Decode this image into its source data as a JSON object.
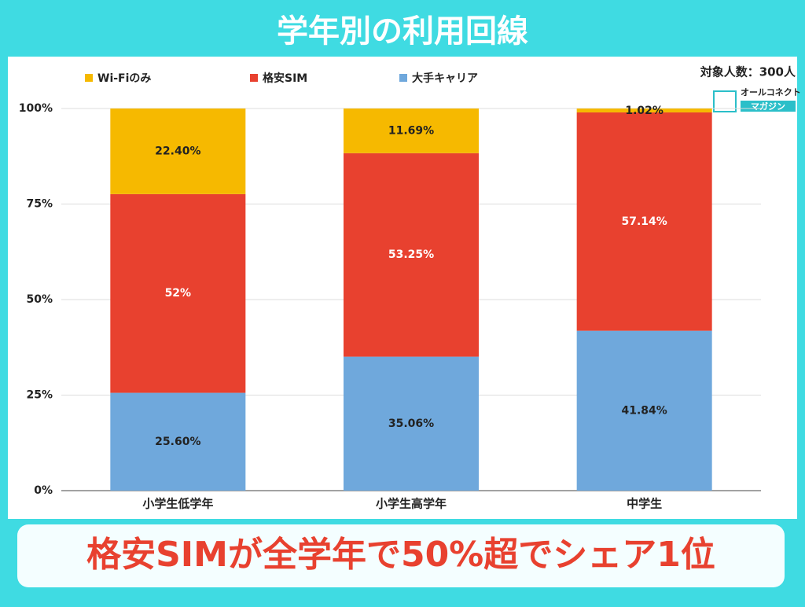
{
  "chart_data": {
    "type": "stacked_bar",
    "title": "学年別の利用回線",
    "annotation": "対象人数：300人",
    "logo": [
      "オールコネクト",
      "マガジン"
    ],
    "headline": "格安SIMが全学年で50%超でシェア1位",
    "categories": [
      "小学生低学年",
      "小学生高学年",
      "中学生"
    ],
    "series": [
      {
        "name": "Wi-Fiのみ",
        "color": "#f6b900",
        "values": [
          22.4,
          11.69,
          1.02
        ],
        "value_labels": [
          "22.40%",
          "11.69%",
          "1.02%"
        ]
      },
      {
        "name": "格安SIM",
        "color": "#e8412f",
        "values": [
          52,
          53.25,
          57.14
        ],
        "value_labels": [
          "52%",
          "53.25%",
          "57.14%"
        ]
      },
      {
        "name": "大手キャリア",
        "color": "#6fa8dc",
        "values": [
          25.6,
          35.06,
          41.84
        ],
        "value_labels": [
          "25.60%",
          "35.06%",
          "41.84%"
        ]
      }
    ],
    "ylim": [
      0,
      100
    ],
    "yticks": [
      {
        "value": 0,
        "label": "0%"
      },
      {
        "value": 25,
        "label": "25%"
      },
      {
        "value": 50,
        "label": "50%"
      },
      {
        "value": 75,
        "label": "75%"
      },
      {
        "value": 100,
        "label": "100%"
      }
    ],
    "grid": true,
    "legend": "top"
  }
}
